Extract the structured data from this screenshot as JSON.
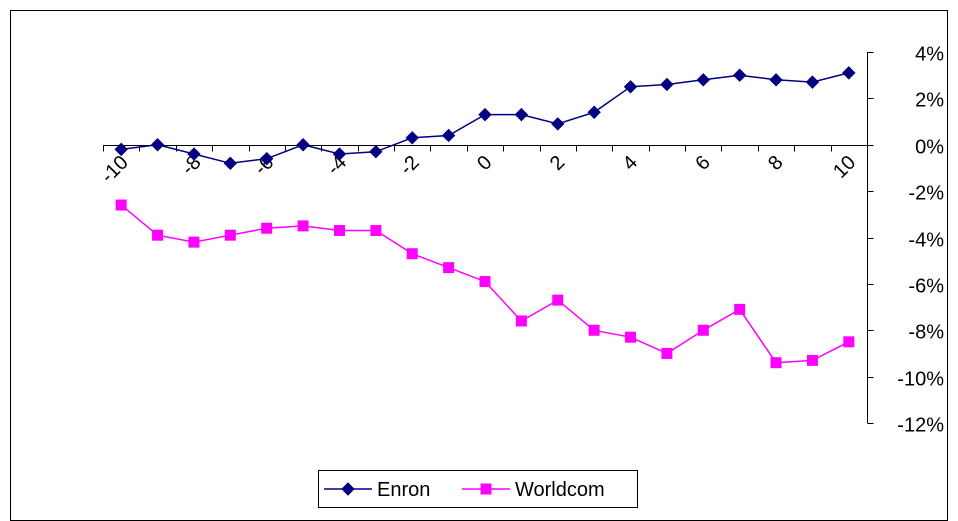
{
  "chart_data": {
    "type": "line",
    "x": [
      -10,
      -9,
      -8,
      -7,
      -6,
      -5,
      -4,
      -3,
      -2,
      -1,
      0,
      1,
      2,
      3,
      4,
      5,
      6,
      7,
      8,
      9,
      10
    ],
    "x_tick_labels": [
      "-10",
      "-8",
      "-6",
      "-4",
      "-2",
      "0",
      "2",
      "4",
      "6",
      "8",
      "10"
    ],
    "x_tick_values": [
      -10,
      -8,
      -6,
      -4,
      -2,
      0,
      2,
      4,
      6,
      8,
      10
    ],
    "y_tick_labels": [
      "4%",
      "2%",
      "0%",
      "-2%",
      "-4%",
      "-6%",
      "-8%",
      "-10%",
      "-12%"
    ],
    "y_tick_values": [
      4,
      2,
      0,
      -2,
      -4,
      -6,
      -8,
      -10,
      -12
    ],
    "ylim": [
      -12,
      4
    ],
    "y_unit": "%",
    "y_axis_position": "right",
    "x_axis_crosses_at": 0,
    "grid": false,
    "legend_position": "bottom-center",
    "series": [
      {
        "name": "Enron",
        "color": "#000080",
        "marker": "diamond",
        "values": [
          -0.2,
          0.0,
          -0.4,
          -0.8,
          -0.6,
          0.0,
          -0.4,
          -0.3,
          0.3,
          0.4,
          1.3,
          1.3,
          0.9,
          1.4,
          2.5,
          2.6,
          2.8,
          3.0,
          2.8,
          2.7,
          3.1
        ]
      },
      {
        "name": "Worldcom",
        "color": "#FF00FF",
        "marker": "square",
        "values": [
          -2.6,
          -3.9,
          -4.2,
          -3.9,
          -3.6,
          -3.5,
          -3.7,
          -3.7,
          -4.7,
          -5.3,
          -5.9,
          -7.6,
          -6.7,
          -8.0,
          -8.3,
          -9.0,
          -8.0,
          -7.1,
          -9.4,
          -9.3,
          -8.5
        ]
      }
    ]
  }
}
